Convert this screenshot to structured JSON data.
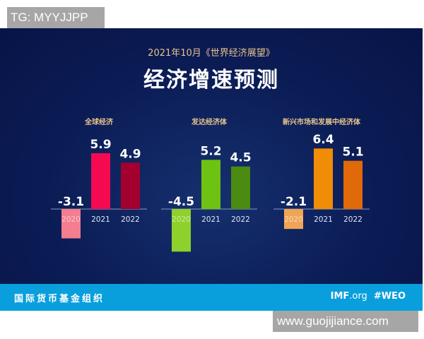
{
  "watermark_top": "TG: MYYJJPP",
  "watermark_bottom": "www.guojijiance.com",
  "subtitle": "2021年10月《世界经济展望》",
  "title": "经济增速预测",
  "footer": {
    "org": "国际货币基金组织",
    "site_bold": "IMF",
    "site_rest": ".org",
    "hashtag": "#WEO"
  },
  "chart_data": [
    {
      "type": "bar",
      "title": "全球经济",
      "categories": [
        "2020",
        "2021",
        "2022"
      ],
      "values": [
        -3.1,
        5.9,
        4.9
      ],
      "colors": [
        "#f47d90",
        "#f50a52",
        "#a3002f"
      ]
    },
    {
      "type": "bar",
      "title": "发达经济体",
      "categories": [
        "2020",
        "2021",
        "2022"
      ],
      "values": [
        -4.5,
        5.2,
        4.5
      ],
      "colors": [
        "#8fd12c",
        "#6ec212",
        "#4b8b12"
      ]
    },
    {
      "type": "bar",
      "title": "新兴市场和发展中经济体",
      "categories": [
        "2020",
        "2021",
        "2022"
      ],
      "values": [
        -2.1,
        6.4,
        5.1
      ],
      "colors": [
        "#f0a455",
        "#f08c05",
        "#e0690a"
      ]
    }
  ]
}
